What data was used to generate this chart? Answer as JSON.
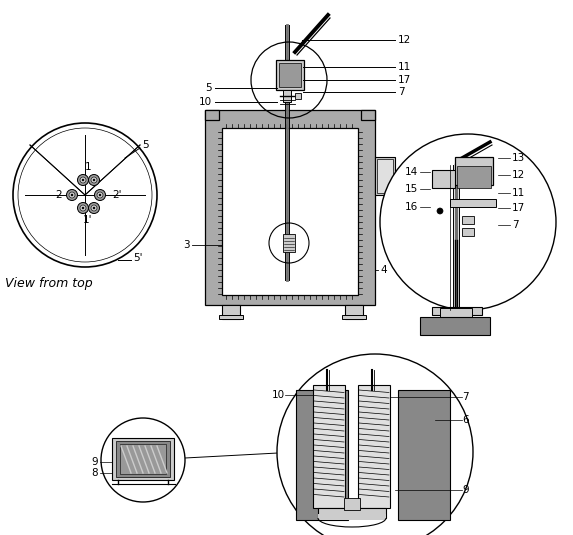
{
  "bg_color": "#ffffff",
  "gray_body": "#aaaaaa",
  "gray_dark": "#707070",
  "gray_light": "#cccccc",
  "gray_lighter": "#e0e0e0",
  "gray_mid": "#999999",
  "gray_inner_block": "#888888",
  "black": "#000000",
  "white": "#ffffff",
  "label_fontsize": 7.5,
  "text_fontsize": 9,
  "tick_color": "#444444"
}
